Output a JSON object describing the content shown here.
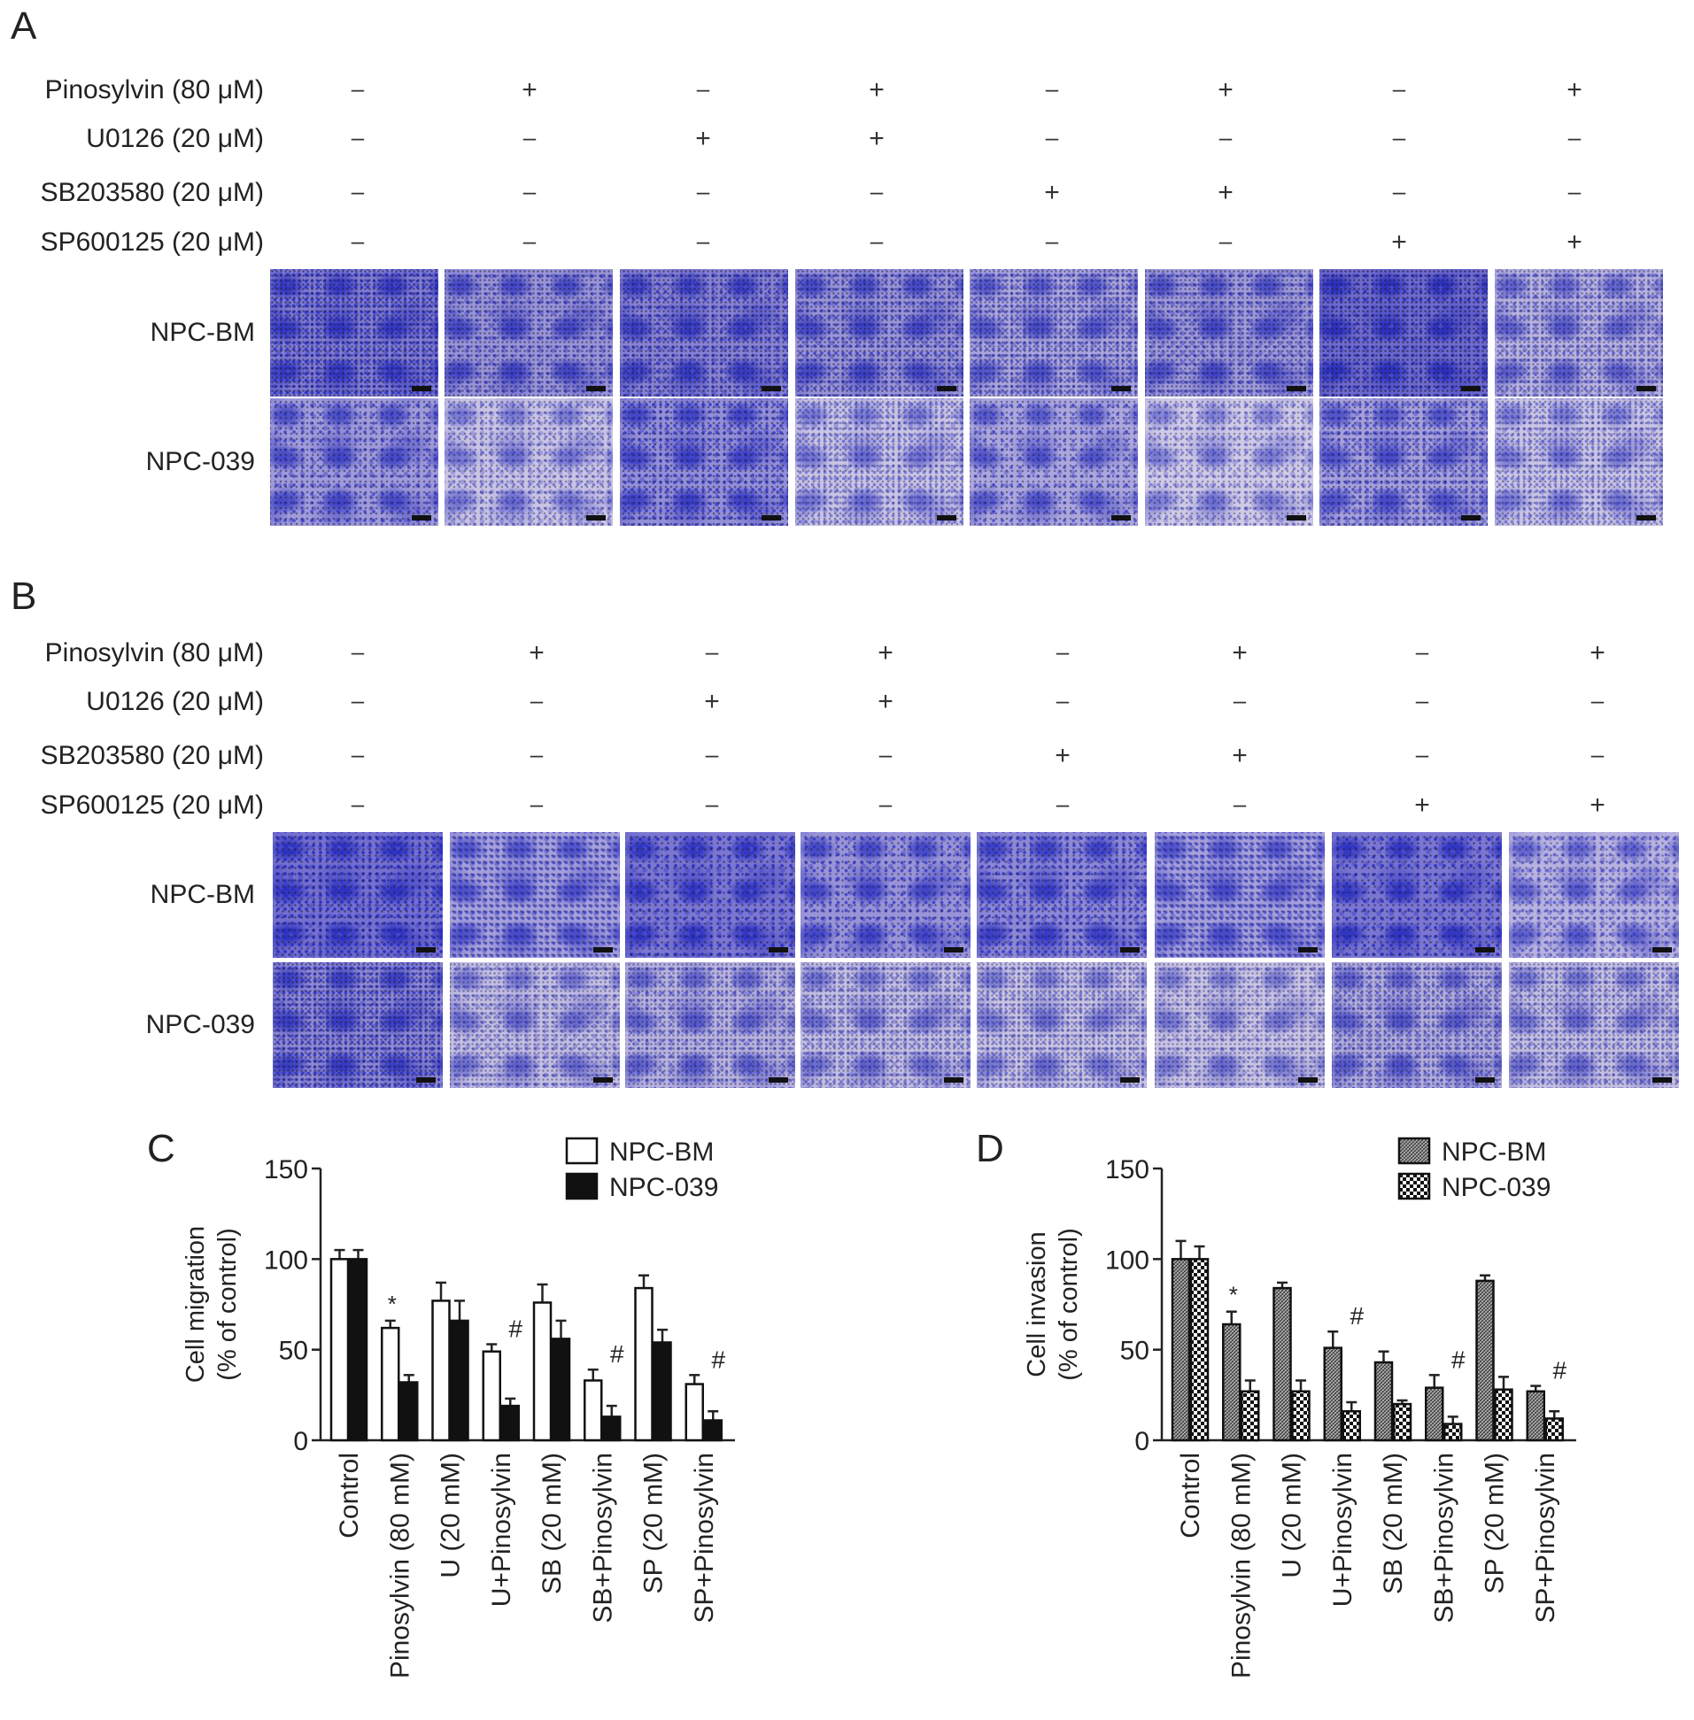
{
  "panels": {
    "A": "A",
    "B": "B",
    "C": "C",
    "D": "D"
  },
  "treatments": [
    {
      "label": "Pinosylvin (80 μM)",
      "signs": [
        "–",
        "+",
        "–",
        "+",
        "–",
        "+",
        "–",
        "+"
      ]
    },
    {
      "label": "U0126 (20 μM)",
      "signs": [
        "–",
        "–",
        "+",
        "+",
        "–",
        "–",
        "–",
        "–"
      ]
    },
    {
      "label": "SB203580 (20 μM)",
      "signs": [
        "–",
        "–",
        "–",
        "–",
        "+",
        "+",
        "–",
        "–"
      ]
    },
    {
      "label": "SP600125 (20 μM)",
      "signs": [
        "–",
        "–",
        "–",
        "–",
        "–",
        "–",
        "+",
        "+"
      ]
    }
  ],
  "cell_lines": [
    "NPC-BM",
    "NPC-039"
  ],
  "micrograph_staining": {
    "A": {
      "NPC-BM": [
        0.8,
        0.6,
        0.75,
        0.6,
        0.45,
        0.55,
        0.95,
        0.35
      ],
      "NPC-039": [
        0.55,
        0.2,
        0.65,
        0.2,
        0.45,
        0.15,
        0.5,
        0.2
      ]
    },
    "B": {
      "NPC-BM": [
        0.9,
        0.5,
        0.85,
        0.6,
        0.7,
        0.5,
        0.85,
        0.35
      ],
      "NPC-039": [
        0.7,
        0.25,
        0.35,
        0.25,
        0.2,
        0.2,
        0.4,
        0.25
      ]
    }
  },
  "colors": {
    "stain": "#3a3ec4",
    "background_membrane": "#d9d4e6",
    "bar_black": "#111111"
  },
  "chart_data": [
    {
      "type": "bar",
      "panel": "C",
      "categories": [
        "Control",
        "Pinosylvin (80 mM)",
        "U (20 mM)",
        "U+Pinosylvin",
        "SB (20 mM)",
        "SB+Pinosylvin",
        "SP (20 mM)",
        "SP+Pinosylvin"
      ],
      "series": [
        {
          "name": "NPC-BM",
          "fill": "open",
          "values": [
            100,
            62,
            77,
            49,
            76,
            33,
            84,
            31
          ],
          "errors": [
            5,
            4,
            10,
            4,
            10,
            6,
            7,
            5
          ]
        },
        {
          "name": "NPC-039",
          "fill": "solid",
          "values": [
            100,
            32,
            66,
            19,
            56,
            13,
            54,
            11
          ],
          "errors": [
            5,
            4,
            11,
            4,
            10,
            6,
            7,
            5
          ]
        }
      ],
      "annotations": [
        "",
        "*",
        "",
        "#",
        "",
        "#",
        "",
        "#"
      ],
      "ylabel": [
        "Cell migration",
        "(% of control)"
      ],
      "yticks": [
        0,
        50,
        100,
        150
      ],
      "ylim": [
        0,
        150
      ],
      "legend_placement": "top-right",
      "grid": false
    },
    {
      "type": "bar",
      "panel": "D",
      "categories": [
        "Control",
        "Pinosylvin (80 mM)",
        "U (20 mM)",
        "U+Pinosylvin",
        "SB (20 mM)",
        "SB+Pinosylvin",
        "SP (20 mM)",
        "SP+Pinosylvin"
      ],
      "series": [
        {
          "name": "NPC-BM",
          "fill": "dense-hatch",
          "values": [
            100,
            64,
            84,
            51,
            43,
            29,
            88,
            27
          ],
          "errors": [
            10,
            7,
            3,
            9,
            6,
            7,
            3,
            3
          ]
        },
        {
          "name": "NPC-039",
          "fill": "checker",
          "values": [
            100,
            27,
            27,
            16,
            20,
            9,
            28,
            12
          ],
          "errors": [
            7,
            6,
            6,
            5,
            2,
            4,
            7,
            4
          ]
        }
      ],
      "annotations": [
        "",
        "*",
        "",
        "#",
        "",
        "#",
        "",
        "#"
      ],
      "ylabel": [
        "Cell invasion",
        "(% of control)"
      ],
      "yticks": [
        0,
        50,
        100,
        150
      ],
      "ylim": [
        0,
        150
      ],
      "legend_placement": "top-right",
      "grid": false
    }
  ]
}
